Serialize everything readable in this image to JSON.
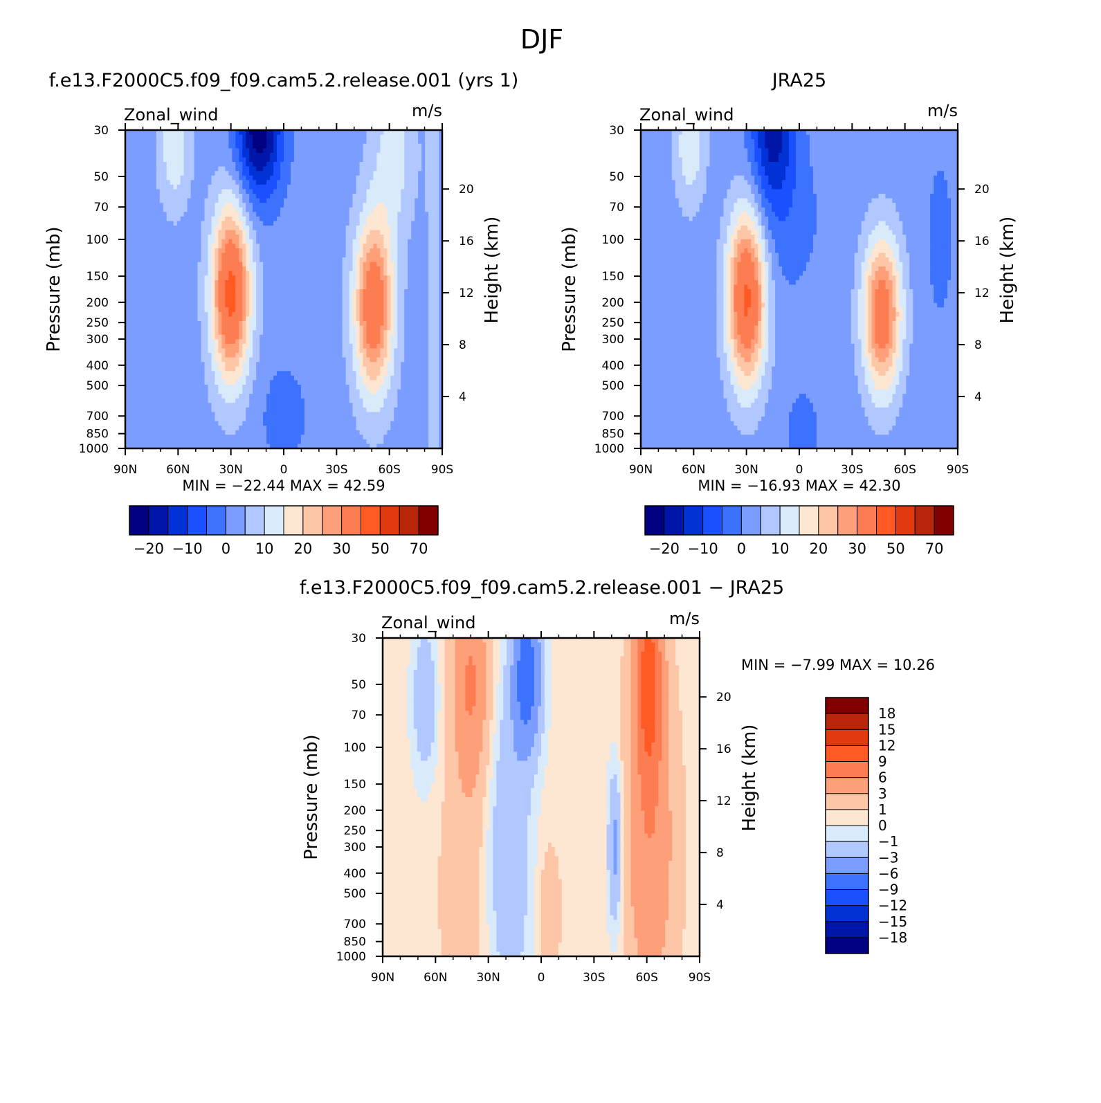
{
  "figure": {
    "title": "DJF"
  },
  "cmap_main": [
    "#000080",
    "#0016a8",
    "#0032d6",
    "#1a50ff",
    "#3d72ff",
    "#7a9dff",
    "#b0c8ff",
    "#d9ebfb",
    "#fde7d2",
    "#fdc6a6",
    "#fda07a",
    "#fd7d52",
    "#ff5a24",
    "#e23a10",
    "#b8260a",
    "#800000"
  ],
  "cmap_diff": [
    "#000080",
    "#0016a8",
    "#0032d6",
    "#1a50ff",
    "#3d72ff",
    "#7a9dff",
    "#b0c8ff",
    "#d9ebfb",
    "#fde7d2",
    "#fdc6a6",
    "#fda07a",
    "#fd7d52",
    "#ff5a24",
    "#e23a10",
    "#b8260a",
    "#800000"
  ],
  "chart_data": [
    {
      "type": "heatmap",
      "title": "f.e13.F2000C5.f09_f09.cam5.2.release.001 (yrs 1)",
      "left_label": "Zonal_wind",
      "right_label": "m/s",
      "ylabel": "Pressure (mb)",
      "y2label": "Height (km)",
      "x_ticks": [
        "90N",
        "60N",
        "30N",
        "0",
        "30S",
        "60S",
        "90S"
      ],
      "y_ticks": [
        "30",
        "50",
        "70",
        "100",
        "150",
        "200",
        "250",
        "300",
        "400",
        "500",
        "700",
        "850",
        "1000"
      ],
      "y2_ticks": [
        "20",
        "16",
        "12",
        "8",
        "4"
      ],
      "min_label": "MIN =",
      "min": "−22.44",
      "max_label": "MAX =",
      "max": "42.59",
      "colorbar_labels": [
        "−20",
        "−10",
        "0",
        "10",
        "20",
        "30",
        "50",
        "70"
      ],
      "centers": [
        {
          "lat": 30,
          "p": 180,
          "amp": 42.59
        },
        {
          "lat": -52,
          "p": 210,
          "amp": 38
        },
        {
          "lat": 18,
          "p": 30,
          "amp": -22.44
        }
      ]
    },
    {
      "type": "heatmap",
      "title": "JRA25",
      "left_label": "Zonal_wind",
      "right_label": "m/s",
      "ylabel": "Pressure (mb)",
      "y2label": "Height (km)",
      "x_ticks": [
        "90N",
        "60N",
        "30N",
        "0",
        "30S",
        "60S",
        "90S"
      ],
      "y_ticks": [
        "30",
        "50",
        "70",
        "100",
        "150",
        "200",
        "250",
        "300",
        "400",
        "500",
        "700",
        "850",
        "1000"
      ],
      "y2_ticks": [
        "20",
        "16",
        "12",
        "8",
        "4"
      ],
      "min_label": "MIN =",
      "min": "−16.93",
      "max_label": "MAX =",
      "max": "42.30",
      "colorbar_labels": [
        "−20",
        "−10",
        "0",
        "10",
        "20",
        "30",
        "50",
        "70"
      ],
      "centers": [
        {
          "lat": 30,
          "p": 190,
          "amp": 42.3
        },
        {
          "lat": -47,
          "p": 230,
          "amp": 36
        },
        {
          "lat": 15,
          "p": 30,
          "amp": -16.93
        }
      ]
    },
    {
      "type": "heatmap",
      "title": "f.e13.F2000C5.f09_f09.cam5.2.release.001 − JRA25",
      "left_label": "Zonal_wind",
      "right_label": "m/s",
      "ylabel": "Pressure (mb)",
      "y2label": "Height (km)",
      "x_ticks": [
        "90N",
        "60N",
        "30N",
        "0",
        "30S",
        "60S",
        "90S"
      ],
      "y_ticks": [
        "30",
        "50",
        "70",
        "100",
        "150",
        "200",
        "250",
        "300",
        "400",
        "500",
        "700",
        "850",
        "1000"
      ],
      "y2_ticks": [
        "20",
        "16",
        "12",
        "8",
        "4"
      ],
      "min_label": "MIN =",
      "min": "−7.99",
      "max_label": "MAX =",
      "max": "10.26",
      "colorbar_labels": [
        "18",
        "15",
        "12",
        "9",
        "6",
        "3",
        "1",
        "0",
        "−1",
        "−3",
        "−6",
        "−9",
        "−12",
        "−15",
        "−18"
      ],
      "centers": [
        {
          "lat": -60,
          "p": 50,
          "amp": 10.26
        },
        {
          "lat": 8,
          "p": 50,
          "amp": -7.99
        },
        {
          "lat": -42,
          "p": 350,
          "amp": -4
        }
      ]
    }
  ]
}
